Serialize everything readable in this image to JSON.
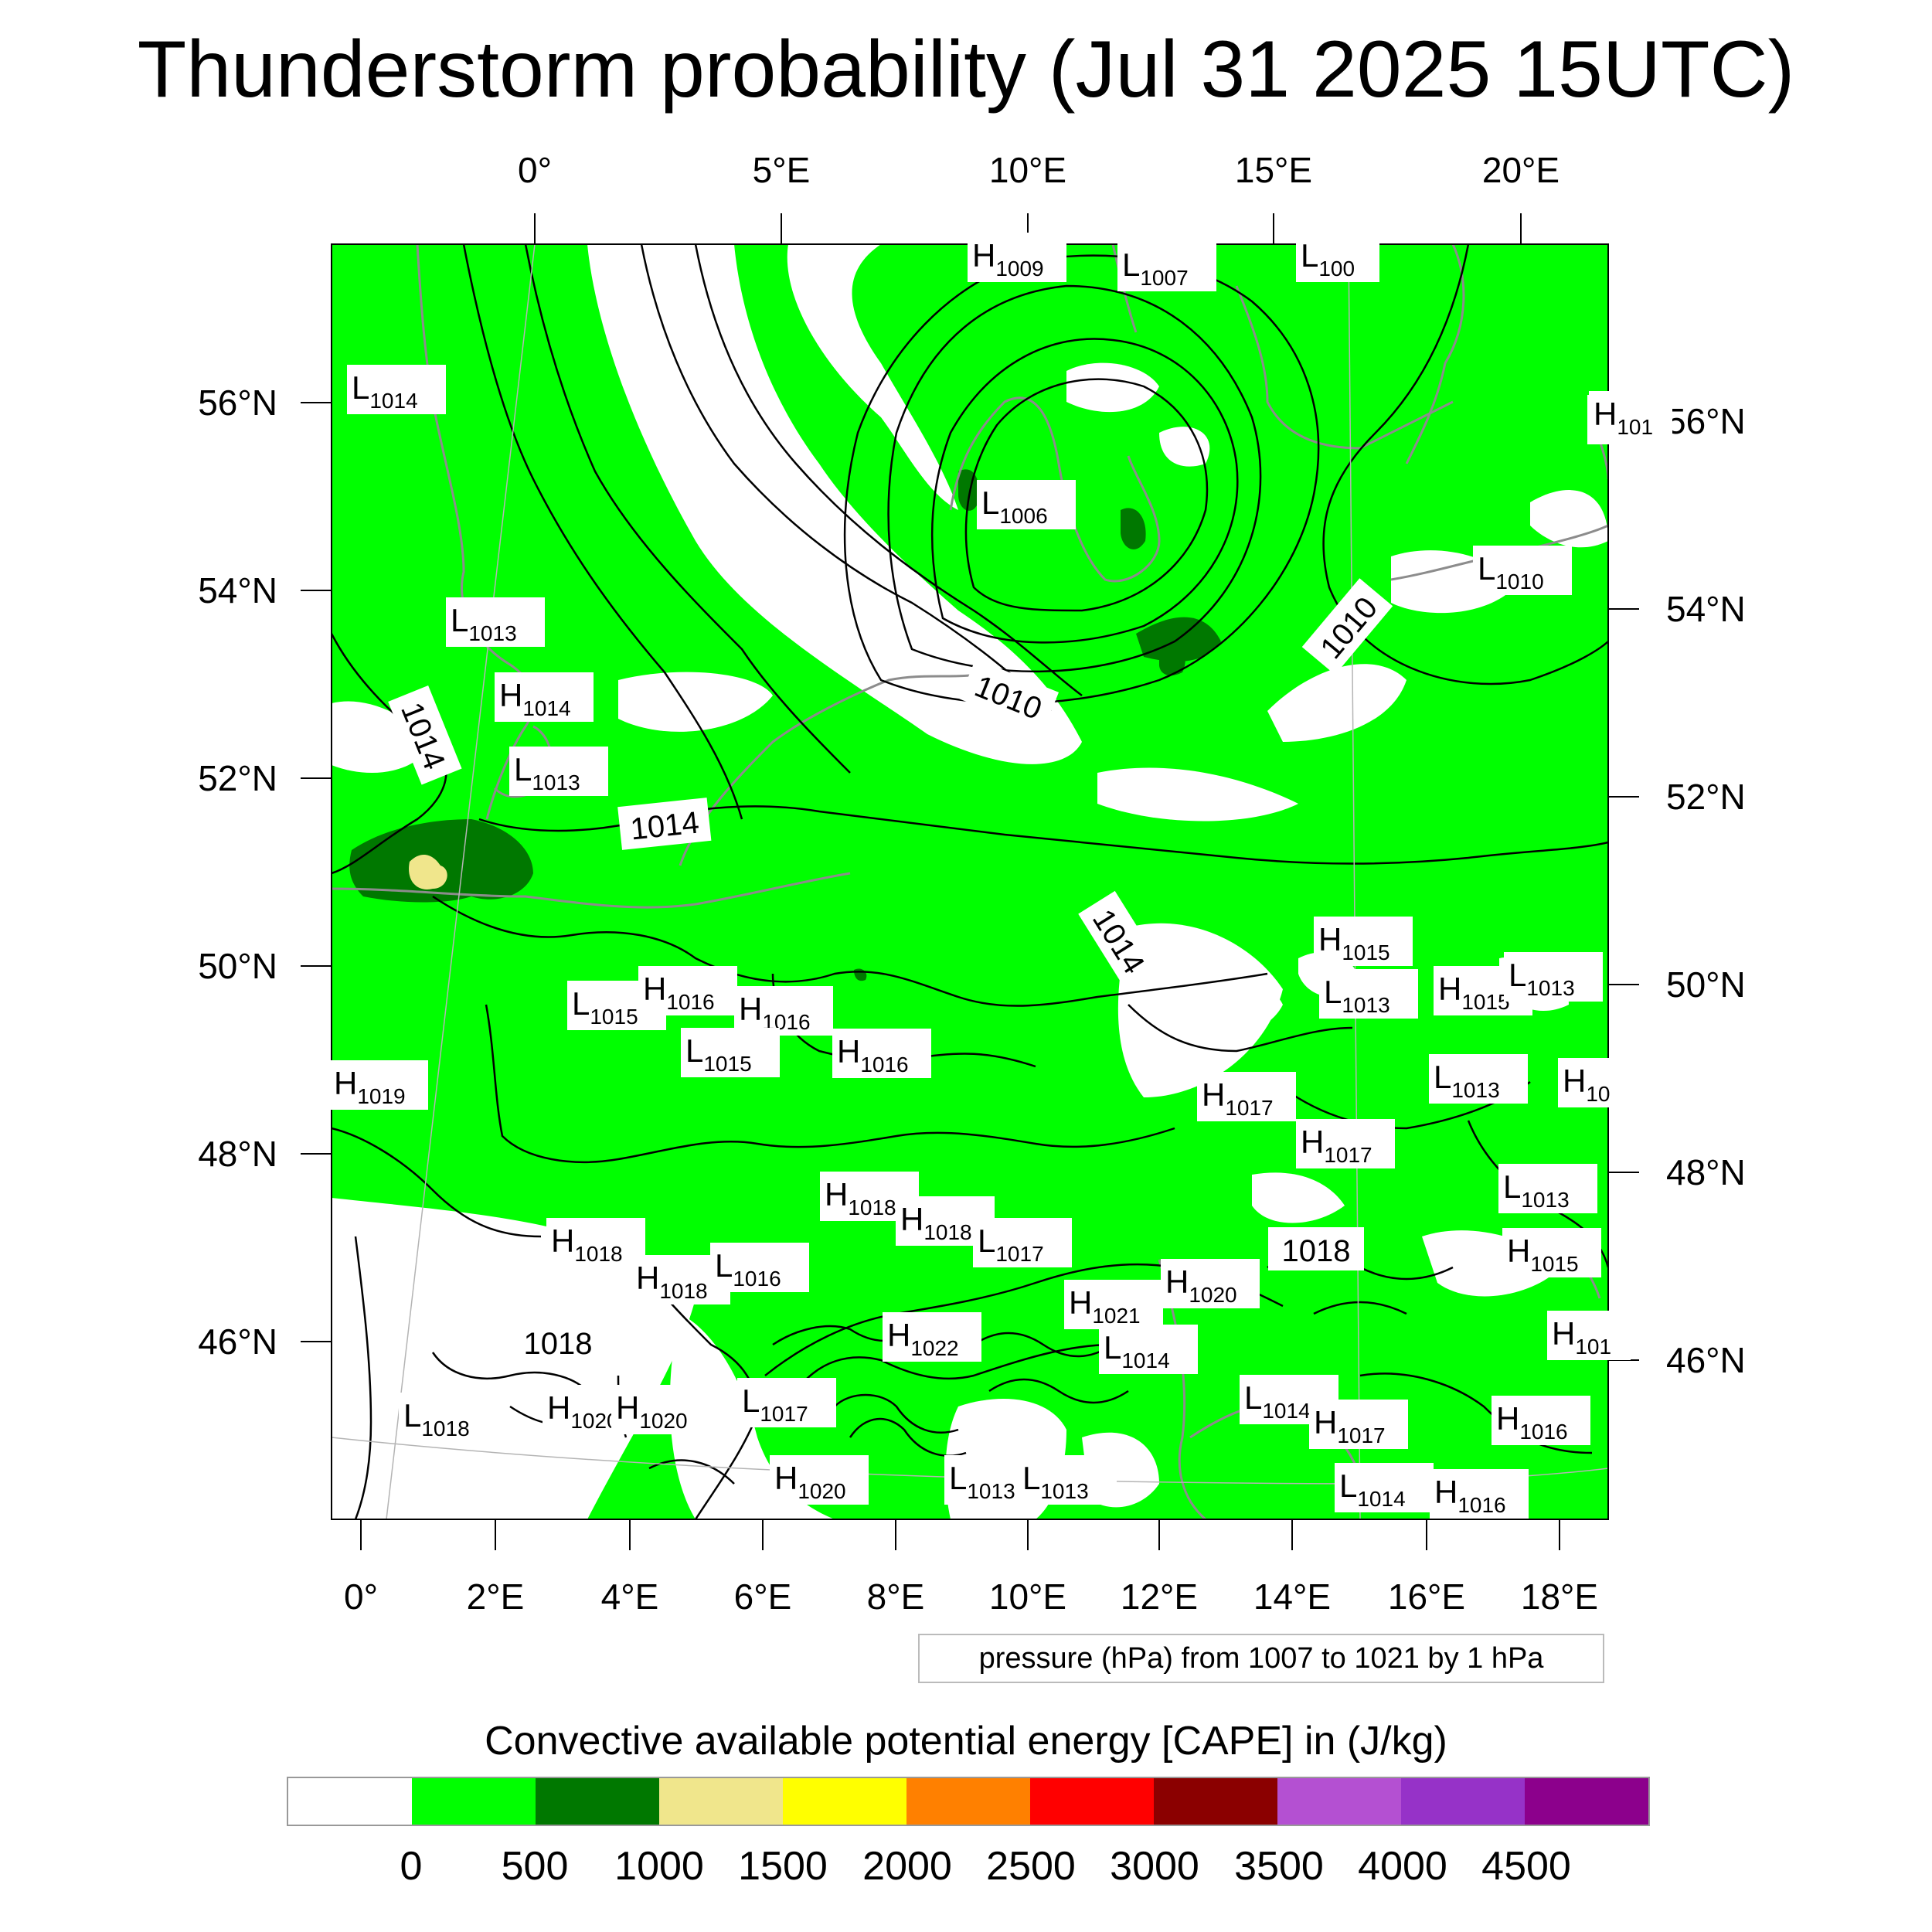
{
  "title": "Thunderstorm probability (Jul 31 2025 15UTC)",
  "top_lon_labels": [
    "0°",
    "5°E",
    "10°E",
    "15°E",
    "20°E"
  ],
  "left_lat_labels": [
    "56°N",
    "54°N",
    "52°N",
    "50°N",
    "48°N",
    "46°N"
  ],
  "right_lat_labels": [
    "56°N",
    "54°N",
    "52°N",
    "50°N",
    "48°N",
    "46°N"
  ],
  "bottom_lon_labels": [
    "0°",
    "2°E",
    "4°E",
    "6°E",
    "8°E",
    "10°E",
    "12°E",
    "14°E",
    "16°E",
    "18°E"
  ],
  "pressure_info": "pressure (hPa) from 1007 to 1021 by 1 hPa",
  "legend": {
    "title": "Convective available potential energy [CAPE] in (J/kg)",
    "colors": [
      "#ffffff",
      "#00ff00",
      "#007800",
      "#f0e68c",
      "#ffff00",
      "#ff8000",
      "#ff0000",
      "#8b0000",
      "#b450d2",
      "#9632c8",
      "#8c008c"
    ],
    "tick_labels": [
      "0",
      "500",
      "1000",
      "1500",
      "2000",
      "2500",
      "3000",
      "3500",
      "4000",
      "4500"
    ]
  },
  "pressure_centers": [
    {
      "type": "H",
      "value": "1009"
    },
    {
      "type": "L",
      "value": "1007"
    },
    {
      "type": "L",
      "value": "100"
    },
    {
      "type": "L",
      "value": "1014"
    },
    {
      "type": "H",
      "value": ""
    },
    {
      "type": "L",
      "value": "1006"
    },
    {
      "type": "L",
      "value": "1013"
    },
    {
      "type": "L",
      "value": "1010"
    },
    {
      "type": "H",
      "value": "1014"
    },
    {
      "type": "L",
      "value": "1013"
    },
    {
      "type": "L",
      "value": "1015"
    },
    {
      "type": "H",
      "value": "1016"
    },
    {
      "type": "H",
      "value": "1016"
    },
    {
      "type": "L",
      "value": "1015"
    },
    {
      "type": "H",
      "value": "1016"
    },
    {
      "type": "H",
      "value": "1019"
    },
    {
      "type": "H",
      "value": "1015"
    },
    {
      "type": "L",
      "value": "1013"
    },
    {
      "type": "H",
      "value": "1015"
    },
    {
      "type": "L",
      "value": "1013"
    },
    {
      "type": "L",
      "value": "1013"
    },
    {
      "type": "H",
      "value": "1017"
    },
    {
      "type": "H",
      "value": "1017"
    },
    {
      "type": "L",
      "value": "1013"
    },
    {
      "type": "H",
      "value": "1018"
    },
    {
      "type": "H",
      "value": "1018"
    },
    {
      "type": "H",
      "value": "1018"
    },
    {
      "type": "L",
      "value": "1017"
    },
    {
      "type": "H",
      "value": "1018"
    },
    {
      "type": "L",
      "value": "1016"
    },
    {
      "type": "H",
      "value": "1020"
    },
    {
      "type": "H",
      "value": "1015"
    },
    {
      "type": "H",
      "value": "1021"
    },
    {
      "type": "H",
      "value": "1022"
    },
    {
      "type": "L",
      "value": "1014"
    },
    {
      "type": "L",
      "value": "1018"
    },
    {
      "type": "H",
      "value": "1020"
    },
    {
      "type": "H",
      "value": "1020"
    },
    {
      "type": "L",
      "value": "1017"
    },
    {
      "type": "L",
      "value": "1014"
    },
    {
      "type": "H",
      "value": "1017"
    },
    {
      "type": "H",
      "value": "1016"
    },
    {
      "type": "H",
      "value": "1020"
    },
    {
      "type": "L",
      "value": "1013"
    },
    {
      "type": "L",
      "value": "1013"
    },
    {
      "type": "L",
      "value": "1014"
    },
    {
      "type": "H",
      "value": "1016"
    },
    {
      "type": "H",
      "value": "101"
    },
    {
      "type": "H",
      "value": "10"
    },
    {
      "type": "H",
      "value": "101"
    }
  ],
  "contour_labels": [
    "1014",
    "1010",
    "1010",
    "1014",
    "1014",
    "1018",
    "1018"
  ]
}
